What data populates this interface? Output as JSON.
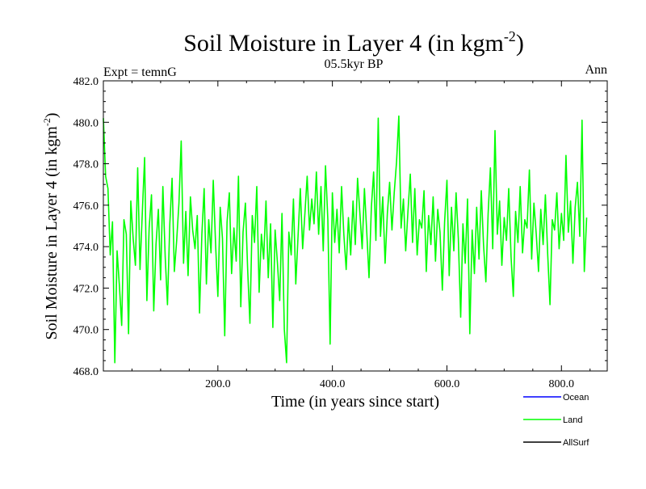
{
  "chart_data": {
    "type": "line",
    "title_main": "Soil Moisture in Layer 4 (in kgm",
    "title_sup": "-2",
    "title_close": ")",
    "subtitle": "05.5kyr BP",
    "left_label": "Expt = temnG",
    "right_label": "Ann",
    "xlabel": "Time (in years since start)",
    "ylabel_main": "Soil Moisture in Layer 4 (in kgm",
    "ylabel_sup": "-2",
    "ylabel_close": ")",
    "xlim": [
      0,
      880
    ],
    "ylim": [
      468.0,
      482.0
    ],
    "x_ticks": [
      200,
      400,
      600,
      800
    ],
    "x_tick_labels": [
      "200.0",
      "400.0",
      "600.0",
      "800.0"
    ],
    "y_ticks": [
      468,
      470,
      472,
      474,
      476,
      478,
      480,
      482
    ],
    "y_tick_labels": [
      "468.0",
      "470.0",
      "472.0",
      "474.0",
      "476.0",
      "478.0",
      "480.0",
      "482.0"
    ],
    "legend": [
      {
        "name": "Ocean",
        "color": "#0000ff"
      },
      {
        "name": "Land",
        "color": "#00ff00"
      },
      {
        "name": "AllSurf",
        "color": "#000000"
      }
    ],
    "series": [
      {
        "name": "Land",
        "color": "#00ff00",
        "x_start": 0,
        "x_step": 4,
        "values": [
          480.2,
          477.4,
          476.8,
          473.6,
          475.2,
          468.4,
          473.8,
          472.1,
          470.2,
          475.3,
          474.6,
          469.8,
          476.2,
          474.4,
          473.1,
          477.8,
          472.9,
          475.6,
          478.3,
          471.4,
          474.9,
          476.5,
          470.9,
          474.1,
          475.8,
          472.4,
          476.9,
          473.5,
          471.2,
          475.1,
          477.3,
          472.8,
          474.3,
          476.1,
          479.1,
          473.2,
          475.7,
          472.6,
          476.4,
          474.8,
          473.9,
          475.5,
          470.8,
          474.6,
          476.8,
          472.2,
          475.3,
          473.7,
          477.2,
          474.1,
          471.6,
          475.9,
          474.4,
          469.7,
          475.2,
          476.6,
          472.7,
          474.9,
          473.3,
          477.4,
          471.1,
          474.7,
          476.1,
          472.9,
          470.3,
          475.5,
          474.2,
          476.9,
          471.8,
          474.6,
          473.4,
          476.2,
          472.5,
          475.1,
          470.1,
          474.8,
          473.2,
          471.4,
          475.6,
          470.0,
          468.4,
          474.7,
          473.6,
          476.3,
          472.2,
          474.5,
          476.8,
          473.9,
          475.6,
          477.4,
          474.8,
          476.3,
          475.1,
          477.6,
          474.6,
          476.9,
          473.8,
          477.9,
          475.3,
          469.3,
          476.6,
          474.2,
          475.8,
          473.7,
          476.9,
          474.6,
          472.9,
          475.4,
          473.6,
          476.2,
          474.1,
          477.3,
          475.6,
          473.9,
          476.8,
          474.7,
          472.5,
          475.9,
          477.6,
          474.3,
          480.2,
          474.5,
          476.4,
          473.2,
          475.6,
          477.1,
          474.8,
          476.6,
          478.1,
          480.3,
          474.9,
          476.3,
          473.8,
          475.7,
          477.5,
          474.2,
          476.8,
          473.6,
          475.3,
          474.9,
          476.7,
          472.8,
          475.5,
          474.1,
          476.4,
          473.3,
          475.8,
          474.7,
          471.9,
          475.2,
          477.2,
          472.6,
          475.9,
          473.8,
          476.6,
          474.4,
          470.6,
          475.1,
          473.2,
          476.3,
          469.8,
          474.8,
          472.7,
          475.9,
          473.4,
          476.7,
          474.1,
          472.3,
          475.6,
          477.8,
          473.9,
          479.6,
          474.6,
          476.2,
          473.1,
          475.4,
          474.3,
          476.8,
          473.5,
          471.6,
          475.7,
          474.2,
          476.9,
          473.7,
          475.3,
          474.9,
          477.7,
          473.4,
          476.1,
          474.6,
          472.8,
          475.8,
          474.1,
          476.5,
          473.6,
          471.2,
          475.3,
          474.8,
          476.6,
          473.9,
          475.6,
          474.3,
          478.4,
          474.7,
          476.2,
          473.2,
          475.9,
          477.1,
          474.5,
          480.1,
          472.8,
          475.4
        ]
      }
    ]
  }
}
